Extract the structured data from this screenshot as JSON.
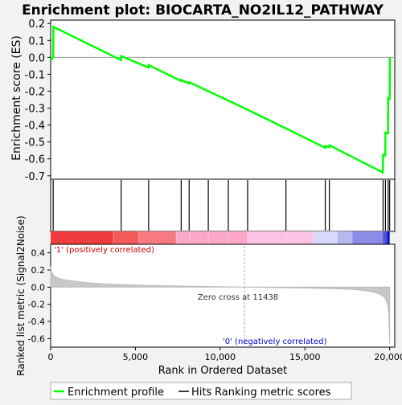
{
  "chart_data": {
    "type": "line",
    "title": "Enrichment plot: BIOCARTA_NO2IL12_PATHWAY",
    "top_panel": {
      "ylabel": "Enrichment score (ES)",
      "ylim": [
        -0.72,
        0.22
      ],
      "yticks": [
        0.2,
        0.1,
        0.0,
        -0.1,
        -0.2,
        -0.3,
        -0.4,
        -0.5,
        -0.6,
        -0.7
      ],
      "ytick_labels": [
        "0.2",
        "0.1",
        "0.0",
        "-0.1",
        "-0.2",
        "-0.3",
        "-0.4",
        "-0.5",
        "-0.6",
        "-0.7"
      ],
      "series": [
        {
          "name": "Enrichment profile",
          "color": "#00ff00",
          "x": [
            0,
            60,
            150,
            160,
            4150,
            4160,
            5770,
            5780,
            7690,
            7700,
            8160,
            8170,
            9300,
            10480,
            11620,
            13880,
            16200,
            16210,
            16440,
            16450,
            19600,
            19610,
            19740,
            19750,
            19900,
            19910,
            20000,
            20010
          ],
          "y": [
            0.0,
            -0.01,
            0.0,
            0.18,
            -0.016,
            0.008,
            -0.06,
            -0.046,
            -0.14,
            -0.133,
            -0.154,
            -0.147,
            -0.2,
            -0.255,
            -0.31,
            -0.42,
            -0.535,
            -0.524,
            -0.53,
            -0.52,
            -0.68,
            -0.575,
            -0.58,
            -0.445,
            -0.45,
            -0.24,
            -0.245,
            0.0
          ]
        }
      ]
    },
    "hits": {
      "name": "Hits",
      "x": [
        150,
        4160,
        5780,
        7700,
        8170,
        9300,
        10480,
        11620,
        13880,
        16200,
        16440,
        19610,
        19750,
        19910,
        20000
      ]
    },
    "heat_band": {
      "colors": [
        "#f03c3c",
        "#f55a5a",
        "#f77a80",
        "#fba8c8",
        "#fcc2e4",
        "#d8d8fa",
        "#b8b8f0",
        "#8c8ce8",
        "#5050d8",
        "#1010c0"
      ],
      "x_stops": [
        0,
        3700,
        5200,
        7400,
        11600,
        15500,
        16900,
        17800,
        19600,
        19850,
        20000
      ]
    },
    "bottom_panel": {
      "ylabel": "Ranked list metric (Signal2Noise)",
      "xlabel": "Rank in Ordered Dataset",
      "ylim": [
        -0.7,
        0.5
      ],
      "yticks": [
        0.4,
        0.2,
        0.0,
        -0.2,
        -0.4,
        -0.6
      ],
      "ytick_labels": [
        "0.4",
        "0.2",
        "0.0",
        "-0.2",
        "-0.4",
        "-0.6"
      ],
      "series": [
        {
          "name": "Ranking metric scores",
          "color": "#c8c8c8",
          "x": [
            0,
            50,
            200,
            500,
            1000,
            2000,
            3000,
            4000,
            6000,
            8000,
            10000,
            11438,
            13000,
            15000,
            16000,
            17000,
            18000,
            18500,
            19000,
            19400,
            19700,
            19850,
            19950,
            20000
          ],
          "y": [
            0.24,
            0.18,
            0.13,
            0.1,
            0.08,
            0.055,
            0.04,
            0.03,
            0.02,
            0.012,
            0.005,
            0.0,
            -0.005,
            -0.01,
            -0.015,
            -0.02,
            -0.03,
            -0.04,
            -0.055,
            -0.08,
            -0.12,
            -0.18,
            -0.3,
            -0.66
          ]
        }
      ],
      "zero_cross_label": "Zero cross at 11438",
      "zero_cross_x": 11438,
      "positive_label": "'1' (positively correlated)",
      "negative_label": "'0' (negatively correlated)"
    },
    "xlim": [
      0,
      20300
    ],
    "xticks": [
      0,
      5000,
      10000,
      15000,
      20000
    ],
    "xtick_labels": [
      "0",
      "5,000",
      "10,000",
      "15,000",
      "20,000"
    ],
    "legend": {
      "placement": "bottom",
      "entries": [
        {
          "label": "Enrichment profile",
          "color": "#00ff00"
        },
        {
          "label": "Hits",
          "color": "#000000"
        },
        {
          "label": "Ranking metric scores",
          "color": "#c8c8c8"
        }
      ]
    }
  }
}
